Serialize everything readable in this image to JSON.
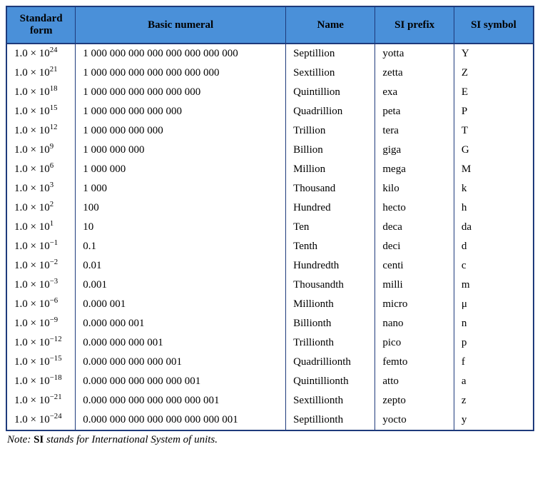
{
  "table": {
    "header_bg": "#4a90d9",
    "border_color": "#1e3a7b",
    "columns": {
      "standard_form": "Standard form",
      "basic_numeral": "Basic numeral",
      "name": "Name",
      "si_prefix": "SI prefix",
      "si_symbol": "SI symbol"
    },
    "rows": [
      {
        "base": "1.0 × 10",
        "exp": "24",
        "numeral": "1 000 000 000 000 000 000 000 000",
        "name": "Septillion",
        "prefix": "yotta",
        "symbol": "Y"
      },
      {
        "base": "1.0 × 10",
        "exp": "21",
        "numeral": "1 000 000 000 000 000 000 000",
        "name": "Sextillion",
        "prefix": "zetta",
        "symbol": "Z"
      },
      {
        "base": "1.0 × 10",
        "exp": "18",
        "numeral": "1 000 000 000 000 000 000",
        "name": "Quintillion",
        "prefix": "exa",
        "symbol": "E"
      },
      {
        "base": "1.0 × 10",
        "exp": "15",
        "numeral": "1 000 000 000 000 000",
        "name": "Quadrillion",
        "prefix": "peta",
        "symbol": "P"
      },
      {
        "base": "1.0 × 10",
        "exp": "12",
        "numeral": "1 000 000 000 000",
        "name": "Trillion",
        "prefix": "tera",
        "symbol": "T"
      },
      {
        "base": "1.0 × 10",
        "exp": "9",
        "numeral": "1 000 000 000",
        "name": "Billion",
        "prefix": "giga",
        "symbol": "G"
      },
      {
        "base": "1.0 × 10",
        "exp": "6",
        "numeral": "1 000 000",
        "name": "Million",
        "prefix": "mega",
        "symbol": "M"
      },
      {
        "base": "1.0 × 10",
        "exp": "3",
        "numeral": "1 000",
        "name": "Thousand",
        "prefix": "kilo",
        "symbol": "k"
      },
      {
        "base": "1.0 × 10",
        "exp": "2",
        "numeral": "100",
        "name": "Hundred",
        "prefix": "hecto",
        "symbol": "h"
      },
      {
        "base": "1.0 × 10",
        "exp": "1",
        "numeral": "10",
        "name": "Ten",
        "prefix": "deca",
        "symbol": "da"
      },
      {
        "base": "1.0 × 10",
        "exp": "−1",
        "numeral": "0.1",
        "name": "Tenth",
        "prefix": "deci",
        "symbol": "d"
      },
      {
        "base": "1.0 × 10",
        "exp": "−2",
        "numeral": "0.01",
        "name": "Hundredth",
        "prefix": "centi",
        "symbol": "c"
      },
      {
        "base": "1.0 × 10",
        "exp": "−3",
        "numeral": "0.001",
        "name": "Thousandth",
        "prefix": "milli",
        "symbol": "m"
      },
      {
        "base": "1.0 × 10",
        "exp": "−6",
        "numeral": "0.000 001",
        "name": "Millionth",
        "prefix": "micro",
        "symbol": "μ"
      },
      {
        "base": "1.0 × 10",
        "exp": "−9",
        "numeral": "0.000 000 001",
        "name": "Billionth",
        "prefix": "nano",
        "symbol": "n"
      },
      {
        "base": "1.0 × 10",
        "exp": "−12",
        "numeral": "0.000 000 000 001",
        "name": "Trillionth",
        "prefix": "pico",
        "symbol": "p"
      },
      {
        "base": "1.0 × 10",
        "exp": "−15",
        "numeral": "0.000 000 000 000 001",
        "name": "Quadrillionth",
        "prefix": "femto",
        "symbol": "f"
      },
      {
        "base": "1.0 × 10",
        "exp": "−18",
        "numeral": "0.000 000 000 000 000 001",
        "name": "Quintillionth",
        "prefix": "atto",
        "symbol": "a"
      },
      {
        "base": "1.0 × 10",
        "exp": "−21",
        "numeral": "0.000 000 000 000 000 000 001",
        "name": "Sextillionth",
        "prefix": "zepto",
        "symbol": "z"
      },
      {
        "base": "1.0 × 10",
        "exp": "−24",
        "numeral": "0.000 000 000 000 000 000 000 001",
        "name": "Septillionth",
        "prefix": "yocto",
        "symbol": "y"
      }
    ]
  },
  "note": {
    "label": "Note:",
    "bold": "SI",
    "rest": " stands for International System of units."
  }
}
